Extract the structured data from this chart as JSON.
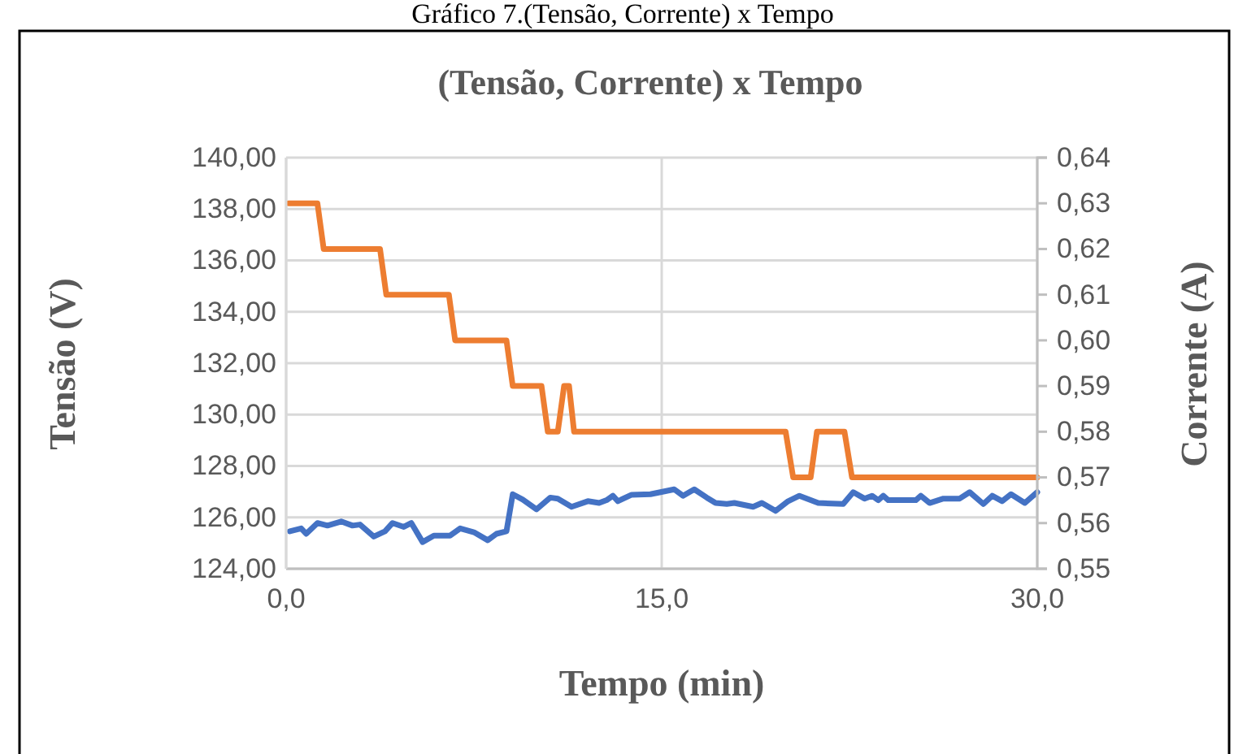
{
  "chart_data": {
    "type": "line",
    "title": "(Tensão, Corrente) x Tempo",
    "xlabel": "Tempo (min)",
    "ylabel": "Tensão (V)",
    "y2label": "Corrente (A)",
    "annotations": [
      "Gráfico 7.(Tensão, Corrente) x Tempo"
    ],
    "xlim": [
      0,
      30
    ],
    "xticks": [
      {
        "value": 0,
        "label": "0,0"
      },
      {
        "value": 15,
        "label": "15,0"
      },
      {
        "value": 30,
        "label": "30,0"
      }
    ],
    "ylim": [
      124,
      140
    ],
    "yticks": [
      {
        "value": 124,
        "label": "124,00"
      },
      {
        "value": 126,
        "label": "126,00"
      },
      {
        "value": 128,
        "label": "128,00"
      },
      {
        "value": 130,
        "label": "130,00"
      },
      {
        "value": 132,
        "label": "132,00"
      },
      {
        "value": 134,
        "label": "134,00"
      },
      {
        "value": 136,
        "label": "136,00"
      },
      {
        "value": 138,
        "label": "138,00"
      },
      {
        "value": 140,
        "label": "140,00"
      }
    ],
    "y2lim": [
      0.55,
      0.64
    ],
    "y2ticks": [
      {
        "value": 0.55,
        "label": "0,55"
      },
      {
        "value": 0.56,
        "label": "0,56"
      },
      {
        "value": 0.57,
        "label": "0,57"
      },
      {
        "value": 0.58,
        "label": "0,58"
      },
      {
        "value": 0.59,
        "label": "0,59"
      },
      {
        "value": 0.6,
        "label": "0,60"
      },
      {
        "value": 0.61,
        "label": "0,61"
      },
      {
        "value": 0.62,
        "label": "0,62"
      },
      {
        "value": 0.63,
        "label": "0,63"
      },
      {
        "value": 0.64,
        "label": "0,64"
      }
    ],
    "grid": true,
    "line_style": "solid",
    "marker": "none",
    "series": [
      {
        "color": "#4472c4",
        "x": [
          0.15,
          0.6,
          0.8,
          1.25,
          1.65,
          2.2,
          2.65,
          2.95,
          3.5,
          3.95,
          4.25,
          4.7,
          5.0,
          5.45,
          5.9,
          6.55,
          6.95,
          7.5,
          8.05,
          8.4,
          8.8,
          9.05,
          9.45,
          10.0,
          10.55,
          10.85,
          11.4,
          12.05,
          12.5,
          12.8,
          13.05,
          13.25,
          13.8,
          14.55,
          14.95,
          15.5,
          15.85,
          16.3,
          16.8,
          17.15,
          17.6,
          17.9,
          18.65,
          19.0,
          19.55,
          20.05,
          20.5,
          21.25,
          22.25,
          22.65,
          23.1,
          23.4,
          23.65,
          23.85,
          24.05,
          25.15,
          25.35,
          25.7,
          26.25,
          26.9,
          27.3,
          27.85,
          28.2,
          28.6,
          28.95,
          29.5,
          30.0
        ],
        "values": [
          125.46,
          125.57,
          125.36,
          125.78,
          125.68,
          125.84,
          125.68,
          125.72,
          125.25,
          125.46,
          125.78,
          125.63,
          125.78,
          125.04,
          125.29,
          125.29,
          125.57,
          125.42,
          125.11,
          125.36,
          125.46,
          126.9,
          126.69,
          126.31,
          126.77,
          126.73,
          126.41,
          126.63,
          126.56,
          126.67,
          126.84,
          126.63,
          126.88,
          126.9,
          126.98,
          127.09,
          126.84,
          127.09,
          126.77,
          126.56,
          126.52,
          126.56,
          126.41,
          126.56,
          126.25,
          126.63,
          126.84,
          126.56,
          126.52,
          126.98,
          126.73,
          126.84,
          126.67,
          126.84,
          126.67,
          126.67,
          126.84,
          126.56,
          126.73,
          126.73,
          126.98,
          126.52,
          126.84,
          126.63,
          126.9,
          126.56,
          126.98
        ]
      },
      {
        "color": "#ed7d31",
        "axis": "y2",
        "x": [
          0.1,
          1.25,
          1.5,
          3.75,
          4.0,
          6.5,
          6.75,
          8.8,
          9.05,
          10.2,
          10.45,
          10.85,
          11.1,
          11.3,
          11.5,
          19.95,
          20.25,
          20.95,
          21.2,
          22.3,
          22.6,
          30.0
        ],
        "values": [
          0.63,
          0.63,
          0.62,
          0.62,
          0.61,
          0.61,
          0.6,
          0.6,
          0.59,
          0.59,
          0.58,
          0.58,
          0.59,
          0.59,
          0.58,
          0.58,
          0.57,
          0.57,
          0.58,
          0.58,
          0.57,
          0.57
        ]
      }
    ]
  }
}
